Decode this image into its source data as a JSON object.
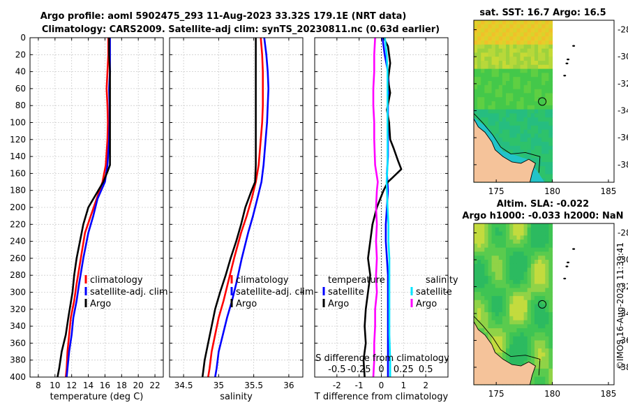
{
  "title_line1": "Argo profile: aoml 5902475_293 11-Aug-2023 33.32S 179.1E (NRT data)",
  "title_line2": "Climatology: CARS2009. Satellite-adj clim: synTS_20230811.nc (0.63d earlier)",
  "watermark": "©IMOS 16-Aug-2023 11:39:41",
  "colors": {
    "clim": "#ff0000",
    "sat": "#0000ff",
    "argo": "#000000",
    "diff_sat": "#00e5ff",
    "diff_argo": "#ff00ff"
  },
  "chart_data": [
    {
      "id": "temp",
      "type": "line",
      "xlabel": "temperature (deg C)",
      "xlim": [
        7,
        23
      ],
      "xticks": [
        8,
        10,
        12,
        14,
        16,
        18,
        20,
        22
      ],
      "xtick_labels": [
        "8",
        "10",
        "12",
        "14",
        "16",
        "18",
        "20",
        "22"
      ],
      "ylim": [
        0,
        400
      ],
      "yticks": [
        0,
        20,
        40,
        60,
        80,
        100,
        120,
        140,
        160,
        180,
        200,
        220,
        240,
        260,
        280,
        300,
        320,
        340,
        360,
        380,
        400
      ],
      "ytick_labels": [
        "0",
        "20",
        "40",
        "60",
        "80",
        "100",
        "120",
        "140",
        "160",
        "180",
        "200",
        "220",
        "240",
        "260",
        "280",
        "300",
        "320",
        "340",
        "360",
        "380",
        "400"
      ],
      "legend": [
        "climatology",
        "satellite-adj. clim",
        "Argo"
      ],
      "series": [
        {
          "name": "climatology",
          "color": "#ff0000",
          "x": [
            16.4,
            16.4,
            16.3,
            16.2,
            16.3,
            16.35,
            16.3,
            16.1,
            15.7,
            15.0,
            14.3,
            13.6,
            13.1,
            12.6,
            12.3,
            11.9,
            11.7,
            11.5,
            11.4,
            11.3
          ],
          "y": [
            0,
            20,
            40,
            60,
            80,
            100,
            120,
            150,
            170,
            190,
            210,
            230,
            260,
            290,
            310,
            330,
            350,
            370,
            390,
            400
          ]
        },
        {
          "name": "satellite-adj. clim",
          "color": "#0000ff",
          "x": [
            16.6,
            16.6,
            16.6,
            16.5,
            16.55,
            16.55,
            16.5,
            16.3,
            16.0,
            15.1,
            14.6,
            14.0,
            13.4,
            12.9,
            12.6,
            12.2,
            12.0,
            11.7,
            11.5,
            11.4
          ],
          "y": [
            0,
            20,
            40,
            60,
            80,
            100,
            120,
            150,
            170,
            190,
            210,
            230,
            260,
            290,
            310,
            330,
            350,
            370,
            390,
            400
          ]
        },
        {
          "name": "Argo",
          "color": "#000000",
          "x": [
            16.5,
            16.5,
            16.6,
            16.6,
            16.6,
            16.6,
            16.6,
            16.6,
            16.3,
            15.8,
            15.2,
            14.0,
            13.4,
            13.0,
            12.6,
            12.3,
            12.1,
            11.6,
            11.3,
            10.8,
            10.5,
            10.3
          ],
          "y": [
            0,
            20,
            40,
            60,
            80,
            100,
            120,
            150,
            158,
            170,
            180,
            200,
            220,
            240,
            260,
            280,
            300,
            330,
            350,
            370,
            390,
            400
          ]
        }
      ]
    },
    {
      "id": "sal",
      "type": "line",
      "xlabel": "salinity",
      "xlim": [
        34.3,
        36.2
      ],
      "xticks": [
        34.5,
        35,
        35.5,
        36
      ],
      "xtick_labels": [
        "34.5",
        "35",
        "35.5",
        "36"
      ],
      "ylim": [
        0,
        400
      ],
      "yticks": [
        0,
        20,
        40,
        60,
        80,
        100,
        120,
        140,
        160,
        180,
        200,
        220,
        240,
        260,
        280,
        300,
        320,
        340,
        360,
        380,
        400
      ],
      "legend": [
        "climatology",
        "satellite-adj. clim",
        "Argo"
      ],
      "series": [
        {
          "name": "climatology",
          "color": "#ff0000",
          "x": [
            35.6,
            35.62,
            35.63,
            35.63,
            35.63,
            35.62,
            35.6,
            35.57,
            35.53,
            35.47,
            35.4,
            35.32,
            35.22,
            35.13,
            35.07,
            35.0,
            34.95,
            34.9,
            34.87,
            34.85
          ],
          "y": [
            0,
            20,
            40,
            60,
            80,
            100,
            120,
            150,
            170,
            190,
            210,
            230,
            260,
            290,
            310,
            330,
            350,
            370,
            390,
            400
          ]
        },
        {
          "name": "satellite-adj. clim",
          "color": "#0000ff",
          "x": [
            35.65,
            35.68,
            35.7,
            35.71,
            35.7,
            35.69,
            35.67,
            35.64,
            35.61,
            35.55,
            35.49,
            35.42,
            35.33,
            35.25,
            35.19,
            35.12,
            35.06,
            35.0,
            34.97,
            34.95
          ],
          "y": [
            0,
            20,
            40,
            60,
            80,
            100,
            120,
            150,
            170,
            190,
            210,
            230,
            260,
            290,
            310,
            330,
            350,
            370,
            390,
            400
          ]
        },
        {
          "name": "Argo",
          "color": "#000000",
          "x": [
            35.53,
            35.53,
            35.53,
            35.53,
            35.53,
            35.53,
            35.53,
            35.53,
            35.52,
            35.47,
            35.38,
            35.32,
            35.25,
            35.17,
            35.1,
            35.02,
            34.95,
            34.9,
            34.85,
            34.8,
            34.77
          ],
          "y": [
            0,
            20,
            40,
            60,
            80,
            100,
            120,
            150,
            170,
            180,
            200,
            220,
            240,
            260,
            280,
            300,
            320,
            340,
            360,
            380,
            400
          ]
        }
      ]
    },
    {
      "id": "diff",
      "type": "line",
      "xlabel": "T difference from climatology",
      "xlim": [
        -3,
        3
      ],
      "xticks": [
        -2,
        -1,
        0,
        1,
        2
      ],
      "xtick_labels": [
        "-2",
        "-1",
        "0",
        "1",
        "2"
      ],
      "top_label": "S difference from climatology",
      "top_xticks": [
        -0.5,
        -0.25,
        0,
        0.25,
        0.5
      ],
      "top_xtick_labels": [
        "-0.5",
        "-0.25",
        "0",
        "0.25",
        "0.5"
      ],
      "top_xlim": [
        -0.75,
        0.75
      ],
      "ylim": [
        0,
        400
      ],
      "yticks": [
        0,
        20,
        40,
        60,
        80,
        100,
        120,
        140,
        160,
        180,
        200,
        220,
        240,
        260,
        280,
        300,
        320,
        340,
        360,
        380,
        400
      ],
      "legend_left_title": "temperature",
      "legend_right_title": "salinity",
      "legend_left": [
        "satellite",
        "Argo"
      ],
      "legend_right": [
        "satellite",
        "Argo"
      ],
      "series": [
        {
          "name": "T satellite",
          "color": "#0000ff",
          "x": [
            0.05,
            0.15,
            0.3,
            0.35,
            0.3,
            0.3,
            0.3,
            0.25,
            0.3,
            0.25,
            0.2,
            0.2,
            0.25,
            0.3,
            0.3,
            0.3,
            0.3,
            0.3,
            0.3
          ],
          "y": [
            0,
            20,
            40,
            60,
            80,
            100,
            140,
            160,
            180,
            200,
            220,
            240,
            260,
            280,
            300,
            320,
            350,
            380,
            400
          ]
        },
        {
          "name": "T Argo",
          "color": "#000000",
          "x": [
            0.1,
            0.3,
            0.4,
            0.3,
            0.4,
            0.25,
            0.35,
            0.4,
            0.55,
            0.75,
            0.9,
            0.5,
            0.3,
            0.1,
            -0.2,
            -0.4,
            -0.5,
            -0.6,
            -0.5,
            -0.6,
            -0.7,
            -0.75,
            -0.7,
            -0.8,
            -0.75
          ],
          "y": [
            0,
            10,
            30,
            50,
            65,
            85,
            100,
            120,
            130,
            145,
            155,
            165,
            170,
            180,
            200,
            220,
            240,
            260,
            280,
            300,
            320,
            340,
            360,
            380,
            400
          ]
        },
        {
          "name": "S satellite",
          "color": "#00e5ff",
          "x": [
            0.04,
            0.06,
            0.07,
            0.07,
            0.07,
            0.07,
            0.07,
            0.07,
            0.06,
            0.07,
            0.08,
            0.08,
            0.09,
            0.09,
            0.09,
            0.09,
            0.1,
            0.1
          ],
          "y": [
            0,
            20,
            40,
            60,
            80,
            100,
            120,
            150,
            170,
            200,
            220,
            240,
            260,
            290,
            320,
            350,
            380,
            400
          ]
        },
        {
          "name": "S Argo",
          "color": "#ff00ff",
          "x": [
            -0.07,
            -0.08,
            -0.08,
            -0.09,
            -0.09,
            -0.08,
            -0.08,
            -0.07,
            -0.04,
            -0.05,
            -0.06,
            -0.05,
            -0.06,
            -0.05,
            -0.06,
            -0.05,
            -0.07,
            -0.07,
            -0.08,
            -0.08,
            -0.09
          ],
          "y": [
            0,
            20,
            40,
            60,
            80,
            100,
            120,
            150,
            170,
            180,
            200,
            220,
            240,
            260,
            280,
            300,
            320,
            340,
            360,
            380,
            400
          ]
        }
      ]
    },
    {
      "id": "sst_map",
      "type": "heatmap",
      "title": "sat. SST: 16.7 Argo: 16.5",
      "xlim": [
        173,
        185.5
      ],
      "ylim": [
        -39.3,
        -27.3
      ],
      "xticks": [
        175,
        180,
        185
      ],
      "xtick_labels": [
        "175",
        "180",
        "185"
      ],
      "yticks": [
        -28,
        -30,
        -32,
        -34,
        -36,
        -38
      ],
      "ytick_labels": [
        "-28",
        "-30",
        "-32",
        "-34",
        "-36",
        "-38"
      ],
      "data_east_limit": 180,
      "argo_position": [
        179.1,
        -33.32
      ]
    },
    {
      "id": "sla_map",
      "type": "heatmap",
      "title_line1": "Altim. SLA: -0.022",
      "title_line2": "Argo h1000: -0.033 h2000: NaN",
      "xlim": [
        173,
        185.5
      ],
      "ylim": [
        -39.3,
        -27.3
      ],
      "xticks": [
        175,
        180,
        185
      ],
      "xtick_labels": [
        "175",
        "180",
        "185"
      ],
      "yticks": [
        -28,
        -30,
        -32,
        -34,
        -36,
        -38
      ],
      "ytick_labels": [
        "-28",
        "-30",
        "-32",
        "-34",
        "-36",
        "-38"
      ],
      "data_east_limit": 180,
      "argo_position": [
        179.1,
        -33.32
      ]
    }
  ]
}
